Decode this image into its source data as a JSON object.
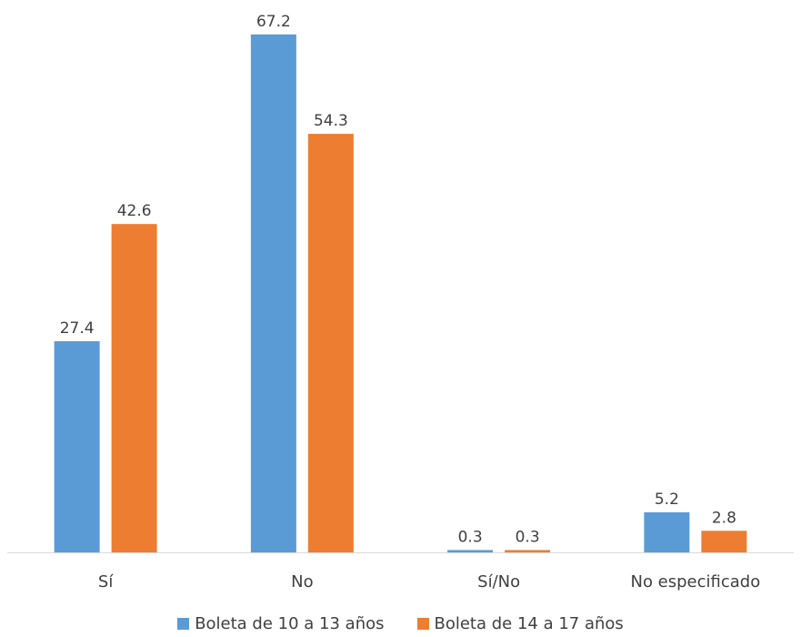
{
  "chart_data": {
    "type": "bar",
    "categories": [
      "Sí",
      "No",
      "Sí/No",
      "No especificado"
    ],
    "series": [
      {
        "name": "Boleta de 10 a 13 años",
        "color": "#5b9bd5",
        "values": [
          27.4,
          67.2,
          0.3,
          5.2
        ],
        "labels": [
          "27.4",
          "67.2",
          "0.3",
          "5.2"
        ]
      },
      {
        "name": "Boleta de 14 a 17 años",
        "color": "#ed7d31",
        "values": [
          42.6,
          54.3,
          0.3,
          2.8
        ],
        "labels": [
          "42.6",
          "54.3",
          "0.3",
          "2.8"
        ]
      }
    ],
    "ylim": [
      0,
      70
    ],
    "grid": false,
    "legend_position": "bottom"
  }
}
